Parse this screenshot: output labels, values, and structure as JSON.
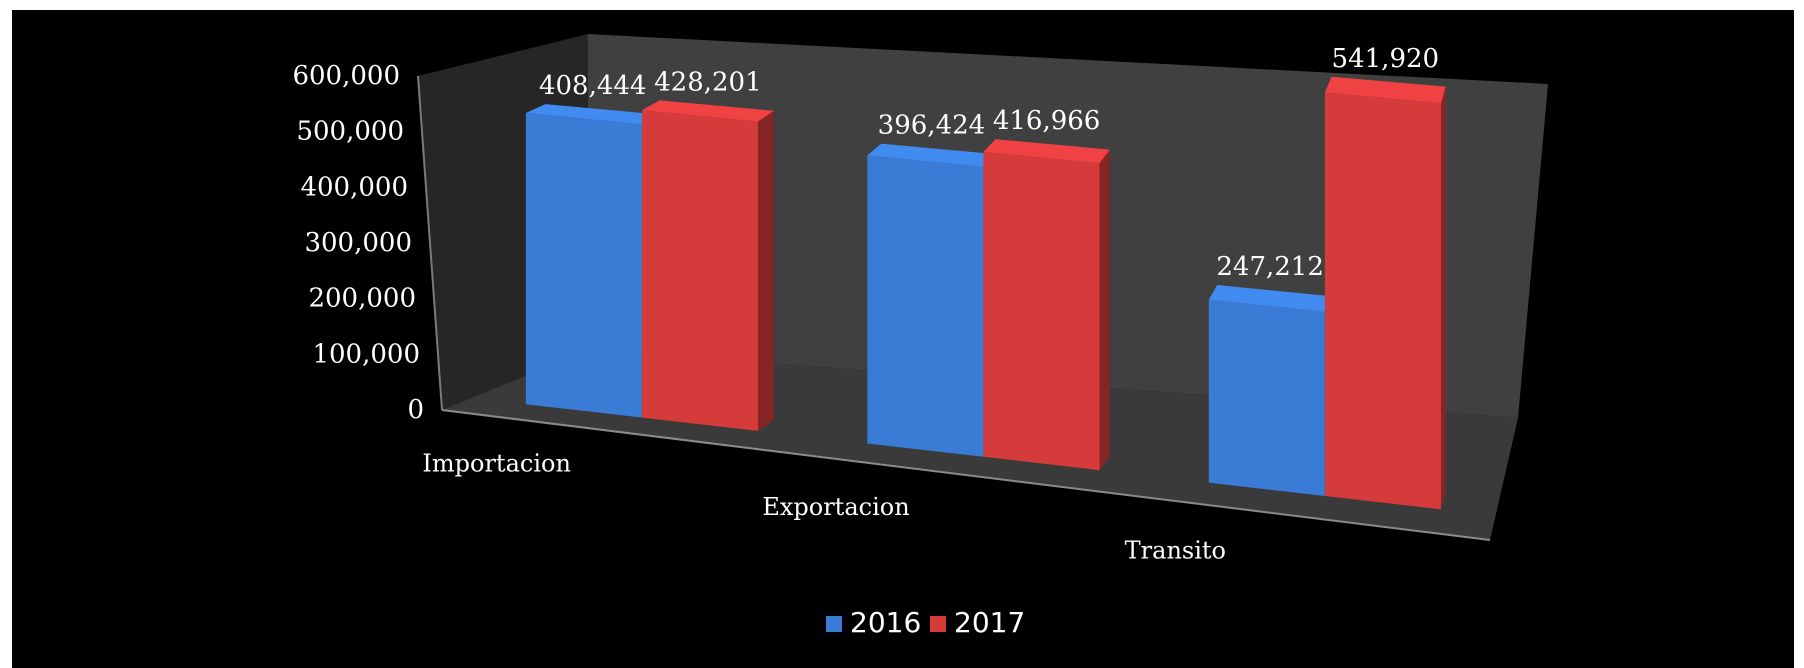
{
  "chart_data": {
    "type": "bar",
    "categories": [
      "Importacion",
      "Exportacion",
      "Transito"
    ],
    "series": [
      {
        "name": "2016",
        "values": [
          408444,
          396424,
          247212
        ],
        "color": "#3a7bd5"
      },
      {
        "name": "2017",
        "values": [
          428201,
          416966,
          541920
        ],
        "color": "#d63b3b"
      }
    ],
    "data_labels": [
      [
        "408,444",
        "396,424",
        "247,212"
      ],
      [
        "428,201",
        "416,966",
        "541,920"
      ]
    ],
    "ylim": [
      0,
      600000
    ],
    "yticks": [
      "0",
      "100,000",
      "200,000",
      "300,000",
      "400,000",
      "500,000",
      "600,000"
    ],
    "grid": false,
    "legend_position": "bottom",
    "style": "3d-clustered-column",
    "background": "#000000"
  }
}
